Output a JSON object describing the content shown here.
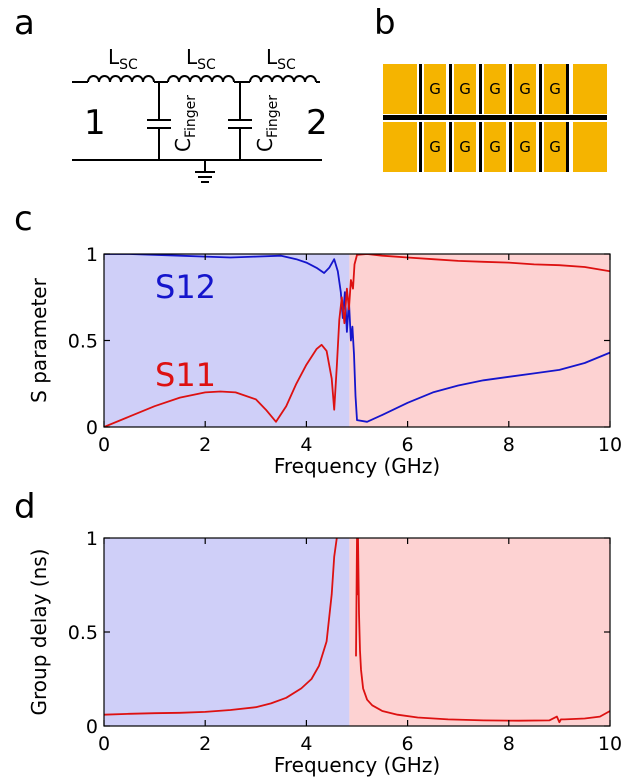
{
  "panels": {
    "a": "a",
    "b": "b",
    "c": "c",
    "d": "d"
  },
  "circuit": {
    "inductor_label": "L",
    "inductor_sub": "SC",
    "capacitor_label": "C",
    "capacitor_sub": "Finger",
    "port1": "1",
    "port2": "2"
  },
  "layout_diagram": {
    "pad_colors": {
      "pad": "#f5b400",
      "gap": "#000000"
    },
    "finger_label": "G",
    "rows": 2,
    "fingers_per_row": 5
  },
  "colors": {
    "blue_region": "#cfcff8",
    "red_region": "#fdd2d2",
    "s12": "#1515cc",
    "s11": "#dd1111",
    "delay": "#dd1111"
  },
  "chart_data": [
    {
      "type": "line",
      "xlabel": "Frequency (GHz)",
      "ylabel": "S parameter",
      "xlim": [
        0,
        10
      ],
      "ylim": [
        0,
        1
      ],
      "xticks": [
        0,
        2,
        4,
        6,
        8,
        10
      ],
      "yticks": [
        0,
        0.5,
        1
      ],
      "ytick_labels": [
        "0",
        "0.5",
        "1"
      ],
      "bands": [
        {
          "x0": 0,
          "x1": 4.85,
          "color_key": "blue_region"
        },
        {
          "x0": 4.85,
          "x1": 10,
          "color_key": "red_region"
        }
      ],
      "series": [
        {
          "name": "S12",
          "color_key": "s12",
          "x": [
            0,
            0.5,
            1,
            1.5,
            2,
            2.5,
            3,
            3.5,
            3.8,
            4.0,
            4.2,
            4.35,
            4.45,
            4.55,
            4.62,
            4.68,
            4.72,
            4.76,
            4.8,
            4.84,
            4.88,
            4.91,
            4.94,
            4.97,
            5.0,
            5.2,
            5.5,
            6,
            6.5,
            7,
            7.5,
            8,
            8.5,
            9,
            9.5,
            10
          ],
          "y": [
            1.0,
            1.0,
            0.995,
            0.99,
            0.985,
            0.98,
            0.985,
            0.99,
            0.97,
            0.95,
            0.92,
            0.89,
            0.92,
            0.97,
            0.9,
            0.78,
            0.63,
            0.78,
            0.55,
            0.73,
            0.5,
            0.58,
            0.42,
            0.18,
            0.04,
            0.03,
            0.07,
            0.14,
            0.2,
            0.24,
            0.27,
            0.29,
            0.31,
            0.33,
            0.37,
            0.43
          ]
        },
        {
          "name": "S11",
          "color_key": "s11",
          "x": [
            0,
            0.5,
            1,
            1.5,
            2,
            2.3,
            2.6,
            3.0,
            3.2,
            3.4,
            3.6,
            3.8,
            4.0,
            4.2,
            4.3,
            4.4,
            4.5,
            4.55,
            4.6,
            4.65,
            4.7,
            4.75,
            4.8,
            4.84,
            4.88,
            4.92,
            4.95,
            5.0,
            5.2,
            5.5,
            6,
            6.5,
            7,
            7.5,
            8,
            8.5,
            9,
            9.5,
            10
          ],
          "y": [
            0.0,
            0.06,
            0.12,
            0.17,
            0.2,
            0.205,
            0.2,
            0.16,
            0.1,
            0.03,
            0.12,
            0.25,
            0.36,
            0.45,
            0.475,
            0.44,
            0.28,
            0.1,
            0.35,
            0.62,
            0.75,
            0.6,
            0.8,
            0.68,
            0.85,
            0.8,
            0.94,
            0.995,
            1.0,
            0.99,
            0.98,
            0.97,
            0.96,
            0.955,
            0.95,
            0.94,
            0.935,
            0.925,
            0.9
          ]
        }
      ]
    },
    {
      "type": "line",
      "xlabel": "Frequency (GHz)",
      "ylabel": "Group delay (ns)",
      "xlim": [
        0,
        10
      ],
      "ylim": [
        0,
        1
      ],
      "xticks": [
        0,
        2,
        4,
        6,
        8,
        10
      ],
      "yticks": [
        0,
        0.5,
        1
      ],
      "ytick_labels": [
        "0",
        "0.5",
        "1"
      ],
      "bands": [
        {
          "x0": 0,
          "x1": 4.85,
          "color_key": "blue_region"
        },
        {
          "x0": 4.85,
          "x1": 10,
          "color_key": "red_region"
        }
      ],
      "series": [
        {
          "color_key": "delay",
          "x": [
            0,
            0.5,
            1,
            1.5,
            2,
            2.5,
            3,
            3.3,
            3.6,
            3.9,
            4.1,
            4.25,
            4.4,
            4.5,
            4.55,
            4.6
          ],
          "y": [
            0.06,
            0.065,
            0.068,
            0.07,
            0.075,
            0.085,
            0.1,
            0.12,
            0.15,
            0.2,
            0.25,
            0.32,
            0.45,
            0.7,
            0.9,
            1.0
          ]
        },
        {
          "color_key": "delay",
          "x": [
            4.98,
            5.0,
            5.01,
            5.02,
            5.04,
            5.06,
            5.08,
            5.12,
            5.2,
            5.3,
            5.5,
            5.8,
            6.2,
            6.8,
            7.5,
            8.2,
            8.8,
            8.95,
            9.0,
            9.03,
            9.1,
            9.5,
            9.8,
            10
          ],
          "y": [
            0.37,
            1.0,
            0.7,
            1.0,
            0.6,
            0.4,
            0.3,
            0.2,
            0.14,
            0.11,
            0.08,
            0.06,
            0.045,
            0.035,
            0.03,
            0.028,
            0.03,
            0.05,
            0.02,
            0.035,
            0.035,
            0.04,
            0.05,
            0.08
          ]
        }
      ]
    }
  ],
  "annotations": {
    "s12_label": "S12",
    "s11_label": "S11"
  }
}
